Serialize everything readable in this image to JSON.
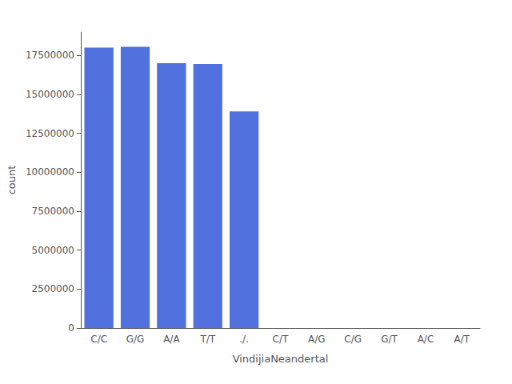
{
  "chart_data": {
    "type": "bar",
    "categories": [
      "C/C",
      "G/G",
      "A/A",
      "T/T",
      "./.",
      "C/T",
      "A/G",
      "C/G",
      "G/T",
      "A/C",
      "A/T"
    ],
    "values": [
      18000000,
      18050000,
      17000000,
      16950000,
      13900000,
      0,
      0,
      0,
      0,
      0,
      0
    ],
    "xlabel": "VindijiaNeandertal",
    "ylabel": "count",
    "ylim": [
      0,
      19000000
    ],
    "yticks": [
      0,
      2500000,
      5000000,
      7500000,
      10000000,
      12500000,
      15000000,
      17500000
    ],
    "grid": false
  }
}
